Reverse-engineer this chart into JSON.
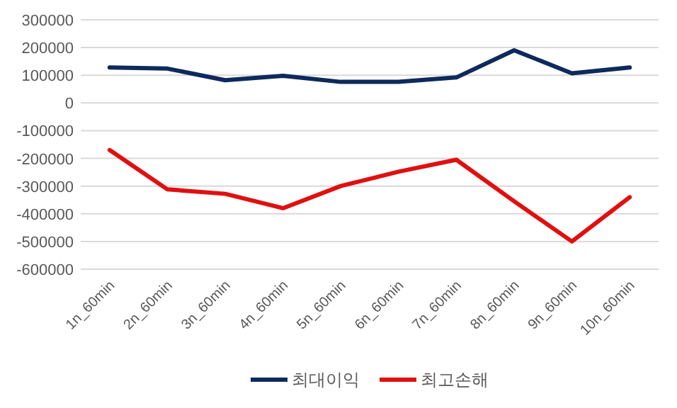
{
  "chart_data": {
    "type": "line",
    "categories": [
      "1n_60min",
      "2n_60min",
      "3n_60min",
      "4n_60min",
      "5n_60min",
      "6n_60min",
      "7n_60min",
      "8n_60min",
      "9n_60min",
      "10n_60min"
    ],
    "series": [
      {
        "name": "최대이익",
        "color": "#0e2a5c",
        "values": [
          128000,
          124000,
          82000,
          98000,
          76000,
          76000,
          92000,
          190000,
          107000,
          128000
        ]
      },
      {
        "name": "최고손해",
        "color": "#e01010",
        "values": [
          -170000,
          -312000,
          -328000,
          -380000,
          -300000,
          -248000,
          -205000,
          -355000,
          -500000,
          -340000
        ]
      }
    ],
    "ylim": [
      -600000,
      300000
    ],
    "yticks": [
      -600000,
      -500000,
      -400000,
      -300000,
      -200000,
      -100000,
      0,
      100000,
      200000,
      300000
    ],
    "grid": "y",
    "legend": "bottom",
    "marker": "none",
    "line_style": "solid"
  }
}
